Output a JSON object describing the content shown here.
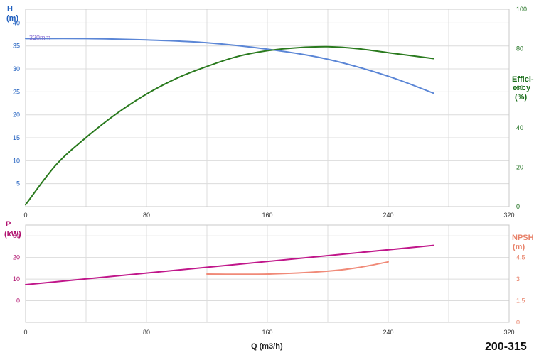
{
  "chart_data": [
    {
      "type": "line",
      "panel": "head-efficiency",
      "x_ticks": [
        "0",
        "80",
        "160",
        "240",
        "320"
      ],
      "xlim": [
        0,
        320
      ],
      "left_axis": {
        "label_line1": "H",
        "label_line2": "(m)",
        "ticks": [
          "5",
          "10",
          "15",
          "20",
          "25",
          "30",
          "35",
          "40"
        ],
        "ylim": [
          0,
          43
        ],
        "color": "#1f5fbf"
      },
      "right_axis": {
        "label_line1": "Effici-",
        "label_line2": "ency",
        "label_line3": "(%)",
        "ticks": [
          "0",
          "20",
          "40",
          "60",
          "80",
          "100"
        ],
        "ylim": [
          0,
          100
        ],
        "color": "#1a6e1a"
      },
      "grid": true,
      "series": [
        {
          "name": "320mm",
          "axis": "left",
          "color": "#5b86d6",
          "x": [
            0,
            40,
            80,
            120,
            160,
            200,
            240,
            270
          ],
          "y": [
            36.6,
            36.6,
            36.3,
            35.7,
            34.3,
            32.1,
            28.4,
            24.7
          ]
        },
        {
          "axis": "right",
          "color": "#2a7a1e",
          "x": [
            0,
            20,
            40,
            60,
            80,
            100,
            120,
            140,
            160,
            180,
            200,
            220,
            240,
            270
          ],
          "y": [
            1,
            21,
            35,
            47,
            57,
            65,
            71,
            76,
            79,
            80.5,
            81,
            80,
            78,
            75
          ]
        }
      ]
    },
    {
      "type": "line",
      "panel": "power-npsh",
      "x_ticks": [
        "0",
        "80",
        "160",
        "240",
        "320"
      ],
      "xlim": [
        0,
        320
      ],
      "xlabel": "Q (m3/h)",
      "left_axis": {
        "label_line1": "P",
        "label_line2": "(kW)",
        "ticks": [
          "0",
          "10",
          "20",
          "30"
        ],
        "ylim": [
          -10,
          35
        ],
        "color": "#b0126f"
      },
      "right_axis": {
        "label_line1": "NPSH",
        "label_line2": "(m)",
        "ticks": [
          "0",
          "1.5",
          "3",
          "4.5"
        ],
        "ylim": [
          0,
          6.75
        ],
        "color": "#e8826a"
      },
      "grid": true,
      "series": [
        {
          "axis": "left",
          "color": "#c0168a",
          "x": [
            0,
            270
          ],
          "y": [
            7.4,
            25.6
          ]
        },
        {
          "axis": "right",
          "color": "#f08a78",
          "x": [
            120,
            160,
            200,
            220,
            240
          ],
          "y": [
            3.35,
            3.35,
            3.55,
            3.8,
            4.2
          ]
        }
      ]
    }
  ],
  "model_label": "200-315"
}
